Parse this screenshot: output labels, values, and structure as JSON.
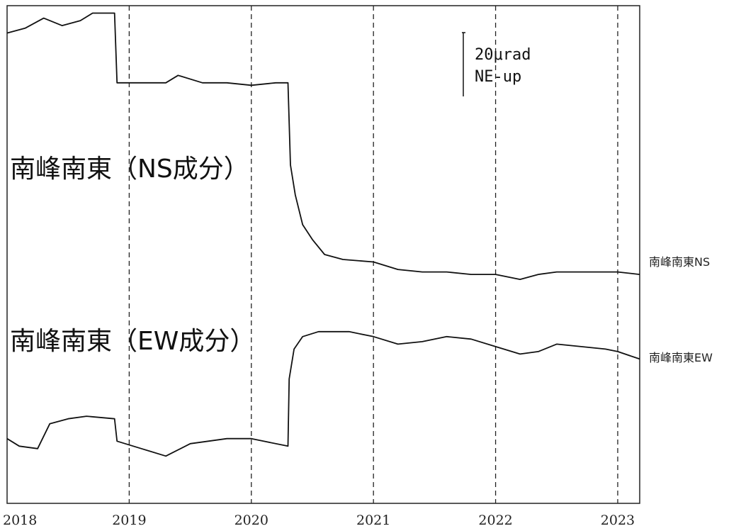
{
  "chart_data": {
    "type": "line",
    "x_ticks": [
      "2018",
      "2019",
      "2020",
      "2021",
      "2022",
      "2023"
    ],
    "vertical_gridlines_dashed": [
      "2019",
      "2020",
      "2021",
      "2022",
      "2023"
    ],
    "xlim": [
      2018.0,
      2023.18
    ],
    "ylim": [
      0,
      1
    ],
    "scale_bar": {
      "value_label": "20μrad",
      "direction_label": "NE-up"
    },
    "annotations": {
      "ns_panel_title": "南峰南東（NS成分）",
      "ew_panel_title": "南峰南東（EW成分）"
    },
    "series": [
      {
        "name": "南峰南東NS",
        "x": [
          2018.0,
          2018.15,
          2018.3,
          2018.45,
          2018.6,
          2018.7,
          2018.88,
          2018.9,
          2019.1,
          2019.3,
          2019.4,
          2019.6,
          2019.8,
          2020.0,
          2020.2,
          2020.3,
          2020.32,
          2020.36,
          2020.42,
          2020.5,
          2020.6,
          2020.75,
          2021.0,
          2021.2,
          2021.4,
          2021.6,
          2021.8,
          2022.0,
          2022.2,
          2022.35,
          2022.5,
          2022.7,
          2022.9,
          2023.0,
          2023.18
        ],
        "y": [
          0.945,
          0.955,
          0.975,
          0.96,
          0.97,
          0.985,
          0.985,
          0.845,
          0.845,
          0.845,
          0.86,
          0.845,
          0.845,
          0.84,
          0.845,
          0.845,
          0.68,
          0.62,
          0.56,
          0.53,
          0.5,
          0.49,
          0.485,
          0.47,
          0.465,
          0.465,
          0.46,
          0.46,
          0.45,
          0.46,
          0.465,
          0.465,
          0.465,
          0.465,
          0.46
        ]
      },
      {
        "name": "南峰南東EW",
        "x": [
          2018.0,
          2018.1,
          2018.25,
          2018.35,
          2018.5,
          2018.65,
          2018.88,
          2018.9,
          2019.1,
          2019.3,
          2019.5,
          2019.8,
          2020.0,
          2020.1,
          2020.3,
          2020.31,
          2020.35,
          2020.42,
          2020.55,
          2020.8,
          2021.0,
          2021.2,
          2021.4,
          2021.6,
          2021.8,
          2022.0,
          2022.2,
          2022.35,
          2022.5,
          2022.7,
          2022.9,
          2023.0,
          2023.18
        ],
        "y": [
          0.13,
          0.115,
          0.11,
          0.16,
          0.17,
          0.175,
          0.17,
          0.125,
          0.11,
          0.095,
          0.12,
          0.13,
          0.13,
          0.125,
          0.115,
          0.25,
          0.31,
          0.335,
          0.345,
          0.345,
          0.335,
          0.32,
          0.325,
          0.335,
          0.33,
          0.315,
          0.3,
          0.305,
          0.32,
          0.315,
          0.31,
          0.305,
          0.29
        ]
      }
    ]
  }
}
